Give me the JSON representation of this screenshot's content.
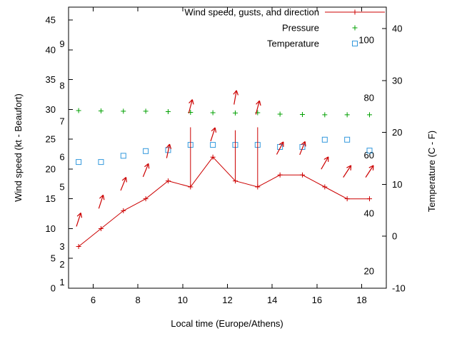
{
  "chart_data": {
    "type": "line",
    "title": "",
    "xlabel": "Local time (Europe/Athens)",
    "ylabel": "Wind speed (kt - Beaufort)",
    "y2label": "Temperature (C - F)",
    "xlim": [
      4.9,
      19.1
    ],
    "ylim": [
      0,
      47.16
    ],
    "y2lim": [
      -10,
      44.12
    ],
    "x_ticks": [
      6,
      8,
      10,
      12,
      14,
      16,
      18
    ],
    "y_ticks": [
      0,
      5,
      10,
      15,
      20,
      25,
      30,
      35,
      40,
      45
    ],
    "y2_ticks": [
      -10,
      0,
      10,
      20,
      30,
      40
    ],
    "beaufort_scale_labels": [
      {
        "text": "1",
        "kt": 1
      },
      {
        "text": "2",
        "kt": 4
      },
      {
        "text": "3",
        "kt": 7
      },
      {
        "text": "5",
        "kt": 17
      },
      {
        "text": "6",
        "kt": 22
      },
      {
        "text": "7",
        "kt": 28
      },
      {
        "text": "8",
        "kt": 34
      },
      {
        "text": "9",
        "kt": 41
      }
    ],
    "fahrenheit_scale_labels": [
      {
        "text": "20",
        "c": -6.7
      },
      {
        "text": "40",
        "c": 4.4
      },
      {
        "text": "60",
        "c": 15.6
      },
      {
        "text": "80",
        "c": 26.7
      },
      {
        "text": "100",
        "c": 37.8
      }
    ],
    "x": [
      5.35,
      6.35,
      7.35,
      8.35,
      9.35,
      10.35,
      11.35,
      12.35,
      13.35,
      14.35,
      15.35,
      16.35,
      17.35,
      18.35
    ],
    "series": [
      {
        "name": "Wind speed, gusts, and direction",
        "style": "linespoints",
        "marker": "plus",
        "color": "#cc0000",
        "axis": "y",
        "values": [
          7,
          10,
          13,
          15,
          18,
          17,
          22,
          18,
          17,
          19,
          19,
          17,
          15,
          15
        ],
        "gusts": [
          null,
          null,
          null,
          null,
          null,
          27,
          null,
          26.5,
          27,
          null,
          null,
          null,
          null,
          null
        ],
        "direction_arrows": [
          {
            "kt": 11.5,
            "deg": 18
          },
          {
            "kt": 14.5,
            "deg": 18
          },
          {
            "kt": 17.5,
            "deg": 22
          },
          {
            "kt": 19.8,
            "deg": 22
          },
          {
            "kt": 23.0,
            "deg": 12
          },
          {
            "kt": 30.5,
            "deg": 15
          },
          {
            "kt": 25.8,
            "deg": 18
          },
          {
            "kt": 32.0,
            "deg": 10
          },
          {
            "kt": 30.3,
            "deg": 15
          },
          {
            "kt": 23.5,
            "deg": 28
          },
          {
            "kt": 23.5,
            "deg": 22
          },
          {
            "kt": 21.0,
            "deg": 30
          },
          {
            "kt": 19.6,
            "deg": 33
          },
          {
            "kt": 19.6,
            "deg": 33
          }
        ]
      },
      {
        "name": "Pressure",
        "style": "points",
        "marker": "plus",
        "color": "#00a000",
        "axis": "y",
        "values": [
          29.8,
          29.75,
          29.7,
          29.7,
          29.62,
          29.5,
          29.45,
          29.4,
          29.45,
          29.2,
          29.15,
          29.1,
          29.1,
          29.1
        ]
      },
      {
        "name": "Temperature",
        "style": "points",
        "marker": "square-open",
        "color": "#3399dd",
        "axis": "y2",
        "values": [
          14.3,
          14.3,
          15.5,
          16.4,
          16.6,
          17.6,
          17.6,
          17.6,
          17.6,
          17.2,
          17.2,
          18.6,
          18.6,
          16.5
        ]
      }
    ],
    "legend_position": "top-inside",
    "grid": false,
    "background": "#ffffff",
    "axis_color": "#000000"
  }
}
